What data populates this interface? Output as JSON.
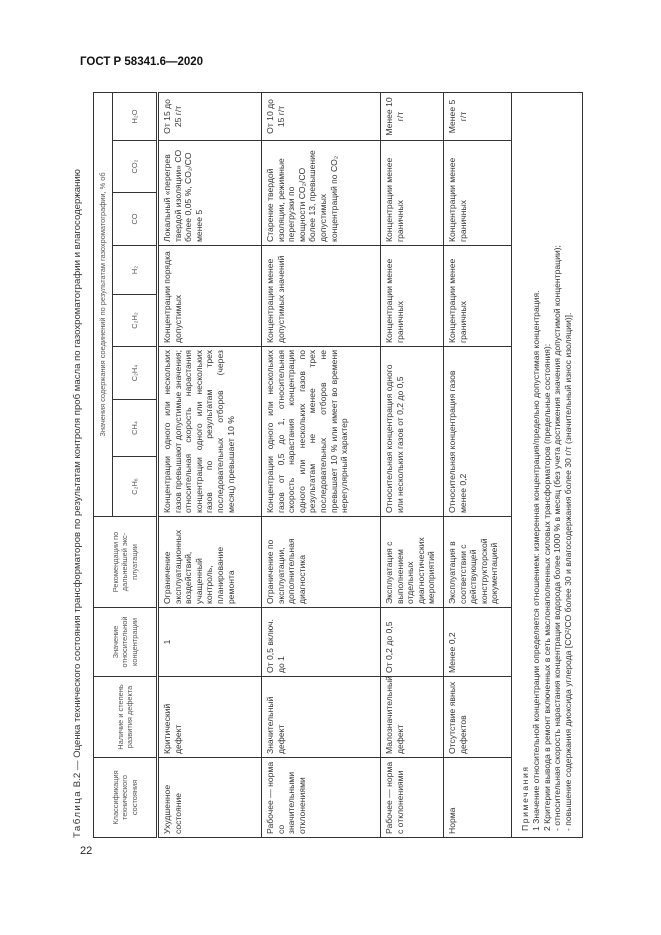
{
  "header": {
    "doc_code": "ГОСТ Р 58341.6—2020"
  },
  "page_number": "22",
  "caption": {
    "label": "Таблица",
    "number": "В.2",
    "text": "— Оценка технического состояния трансформаторов по результатам контроля проб масла по газохроматографии и влагосодержанию"
  },
  "table": {
    "headers": {
      "classification": "Классификация технического состояния",
      "defect": "Наличие и степень развития дефекта",
      "relative": "Значение относительной концентрации",
      "recommendations": "Рекомендации по дальнейшей экс-плуатации",
      "gases_group": "Значения содержания соединений по результатам газохроматографии, % об",
      "gases": [
        "C₂H₆",
        "CH₄",
        "C₂H₄",
        "C₂H₂",
        "H₂",
        "CO",
        "CO₂",
        "H₂O"
      ]
    },
    "rows": [
      {
        "classification": "Ухудшенное состояние",
        "defect": "Критический дефект",
        "relative": "1",
        "recommendations": "Ограничение эксплуатационных воздействий, учащенный контроль, планирование ремонта",
        "hydrocarbons": "Концентрации одного или нескольких газов превышают допустимые значения; относительная скорость нарастания концентрации одного или нескольких газов по результатам трех последовательных отборов (через месяц) превышает 10 %",
        "c2h2_h2": "Концентрации порядка допустимых",
        "co_co2": "Локальный «перегрев твердой изоляции» CO более 0,05 %, CO₂/CO менее 5",
        "h2o": "От 15 до 25 г/т"
      },
      {
        "classification": "Рабочее — норма со значительными отклонениями",
        "defect": "Значительный дефект",
        "relative": "От 0,5 включ. до 1",
        "recommendations": "Ограничение по эксплуатации, дополнительная диагностика",
        "hydrocarbons": "Концентрации одного или нескольких газов от 0,5 до 1, относительная скорость нарастания концентрации одного или нескольких газов по результатам не менее трех последовательных отборов не превышает 10 % или имеет во времени нерегулярный характер",
        "c2h2_h2": "Концентрации менее допустимых значений",
        "co_co2": "Старение твердой изоляции, режимные перегрузки по мощности CO₂/CO более 13, превышение допустимых концентраций по CO₂",
        "h2o": "От 10 до 15 г/т"
      },
      {
        "classification": "Рабочее — норма с отклонениями",
        "defect": "Малозначительный дефект",
        "relative": "От 0,2 до 0,5",
        "recommendations": "Эксплуатация с выполнением отдельных диагностических мероприятий",
        "hydrocarbons": "Относительная концентрация одного или нескольких газов от 0,2 до 0,5",
        "c2h2_h2": "Концентрации менее граничных",
        "co_co2": "Концентрации менее граничных",
        "h2o": "Менее 10 г/т"
      },
      {
        "classification": "Норма",
        "defect": "Отсутствие явных дефектов",
        "relative": "Менее 0,2",
        "recommendations": "Эксплуатация в соответствии с действующей конструкторской документацией",
        "hydrocarbons": "Относительная концентрация газов менее 0,2",
        "c2h2_h2": "Концентрации менее граничных",
        "co_co2": "Концентрации менее граничных",
        "h2o": "Менее 5 г/т"
      }
    ],
    "notes": {
      "title": "Примечания",
      "lines": [
        "1 Значение относительной концентрации определяется отношением: измеренная концентрация/предельно допустимая концентрация.",
        "2 Критерии вывода в ремонт включенных в сеть маслонаполненных силовых трансформаторов (предельные состояния):",
        "- относительная скорость нарастания концентрации водорода более 1000 % в месяц (без учета достижения значения допустимой концентрации);",
        "- повышение содержания диоксида углерода [CO²/CO более 30 и влагосодержания более 30 г/т (значительный износ изоляции)]."
      ]
    }
  }
}
